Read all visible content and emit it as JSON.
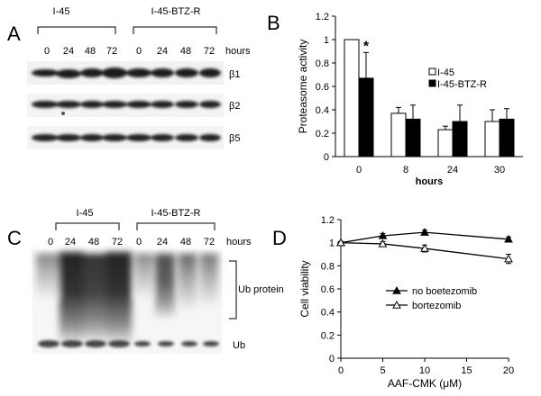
{
  "panel_a": {
    "letter": "A",
    "groups": [
      "I-45",
      "I-45-BTZ-R"
    ],
    "lanes": [
      "0",
      "24",
      "48",
      "72",
      "0",
      "24",
      "48",
      "72"
    ],
    "hours_label": "hours",
    "bands": [
      "β1",
      "β2",
      "β5"
    ]
  },
  "panel_c": {
    "letter": "C",
    "groups": [
      "I-45",
      "I-45-BTZ-R"
    ],
    "lanes": [
      "0",
      "24",
      "48",
      "72",
      "0",
      "24",
      "48",
      "72"
    ],
    "hours_label": "hours",
    "ub_protein_label": "Ub protein",
    "ub_label": "Ub"
  },
  "chart_data": [
    {
      "panel": "B",
      "type": "bar",
      "ylabel": "Proteasome activity",
      "xlabel": "hours",
      "ylim": [
        0,
        1.2
      ],
      "yticks": [
        "0",
        "0.2",
        "0.4",
        "0.6",
        "0.8",
        "1",
        "1.2"
      ],
      "categories": [
        "0",
        "8",
        "24",
        "30"
      ],
      "legend_placement": "right",
      "series": [
        {
          "name": "I-45",
          "color": "#ffffff",
          "values": [
            1.0,
            0.37,
            0.23,
            0.3
          ],
          "errors": [
            0,
            0.05,
            0.03,
            0.1
          ]
        },
        {
          "name": "I-45-BTZ-R",
          "color": "#000000",
          "values": [
            0.67,
            0.32,
            0.3,
            0.32
          ],
          "errors": [
            0.22,
            0.12,
            0.14,
            0.09
          ]
        }
      ],
      "annotations": [
        "*"
      ]
    },
    {
      "panel": "D",
      "type": "line",
      "ylabel": "Cell viability",
      "xlabel": "AAF-CMK (μM)",
      "xlim": [
        0,
        20
      ],
      "ylim": [
        0,
        1.2
      ],
      "xticks": [
        "0",
        "5",
        "10",
        "15",
        "20"
      ],
      "yticks": [
        "0",
        "0.2",
        "0.4",
        "0.6",
        "0.8",
        "1",
        "1.2"
      ],
      "x": [
        0,
        5,
        10,
        20
      ],
      "legend_placement": "center",
      "series": [
        {
          "name": "no boetezomib",
          "marker": "filled-triangle",
          "values": [
            1.0,
            1.06,
            1.09,
            1.03
          ],
          "errors": [
            0.01,
            0.02,
            0.02,
            0.02
          ]
        },
        {
          "name": "bortezomib",
          "marker": "open-triangle",
          "values": [
            1.0,
            0.99,
            0.95,
            0.86
          ],
          "errors": [
            0.01,
            0.02,
            0.03,
            0.04
          ]
        }
      ]
    }
  ]
}
